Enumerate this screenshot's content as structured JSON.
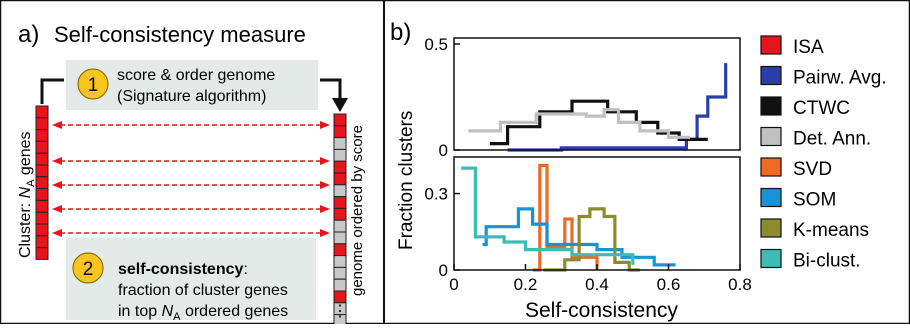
{
  "panel_a": {
    "label": "a)",
    "title": "Self-consistency measure",
    "cluster_axis_label": "Cluster: N_A genes",
    "genome_axis_label": "genome ordered by score",
    "ellipsis": "⋮",
    "step1": {
      "number": "1",
      "line1": "score & order genome",
      "line2": "(Signature algorithm)"
    },
    "step2": {
      "number": "2",
      "bold": "self-consistency",
      "rest": ":",
      "line2": "fraction of cluster genes",
      "line3_prefix": "in top ",
      "line3_sub_var": "N",
      "line3_sub": "A",
      "line3_suffix": " ordered genes"
    },
    "cluster_cells": 13,
    "genome_cells": [
      "red",
      "red",
      "gray",
      "gray",
      "red",
      "red",
      "gray",
      "red",
      "red",
      "gray",
      "gray",
      "red",
      "gray",
      "gray",
      "gray",
      "red",
      "gray",
      "gray",
      "red"
    ],
    "colors": {
      "red": "#e8141c",
      "gray": "#c8c8c8",
      "step_bg": "#e3eae8",
      "badge": "#f7c51b",
      "arrow": "#e8141c"
    }
  },
  "chart_data": [
    {
      "type": "line",
      "panel_label": "b)",
      "ylabel": "Fraction clusters",
      "yticks": [
        "0",
        "0.5"
      ],
      "ylim": [
        0,
        0.5
      ],
      "xlim": [
        0,
        0.8
      ],
      "series": [
        {
          "name": "Pairw. Avg.",
          "color": "#2b3ea8",
          "points": [
            [
              0.15,
              0.0
            ],
            [
              0.3,
              0.0
            ],
            [
              0.3,
              0.01
            ],
            [
              0.65,
              0.01
            ],
            [
              0.65,
              0.05
            ],
            [
              0.68,
              0.05
            ],
            [
              0.68,
              0.16
            ],
            [
              0.71,
              0.16
            ],
            [
              0.71,
              0.25
            ],
            [
              0.76,
              0.25
            ],
            [
              0.76,
              0.41
            ]
          ]
        },
        {
          "name": "CTWC",
          "color": "#111111",
          "points": [
            [
              0.1,
              0.03
            ],
            [
              0.15,
              0.03
            ],
            [
              0.15,
              0.11
            ],
            [
              0.24,
              0.11
            ],
            [
              0.24,
              0.18
            ],
            [
              0.33,
              0.18
            ],
            [
              0.33,
              0.23
            ],
            [
              0.43,
              0.23
            ],
            [
              0.43,
              0.18
            ],
            [
              0.51,
              0.18
            ],
            [
              0.51,
              0.13
            ],
            [
              0.57,
              0.13
            ],
            [
              0.57,
              0.08
            ],
            [
              0.63,
              0.08
            ],
            [
              0.63,
              0.05
            ],
            [
              0.71,
              0.05
            ]
          ]
        },
        {
          "name": "Det. Ann.",
          "color": "#c0c0c0",
          "points": [
            [
              0.04,
              0.09
            ],
            [
              0.13,
              0.09
            ],
            [
              0.13,
              0.13
            ],
            [
              0.23,
              0.13
            ],
            [
              0.23,
              0.17
            ],
            [
              0.37,
              0.17
            ],
            [
              0.37,
              0.16
            ],
            [
              0.42,
              0.16
            ],
            [
              0.42,
              0.19
            ],
            [
              0.46,
              0.19
            ],
            [
              0.46,
              0.13
            ],
            [
              0.52,
              0.13
            ],
            [
              0.52,
              0.09
            ],
            [
              0.6,
              0.09
            ],
            [
              0.6,
              0.06
            ],
            [
              0.66,
              0.06
            ]
          ]
        }
      ]
    },
    {
      "type": "line",
      "ylabel": "Fraction clusters",
      "xlabel": "Self-consistency",
      "yticks": [
        "0",
        "0.3"
      ],
      "xticks": [
        "0",
        "0.2",
        "0.4",
        "0.6",
        "0.8"
      ],
      "ylim": [
        0,
        0.42
      ],
      "xlim": [
        0,
        0.8
      ],
      "series": [
        {
          "name": "SVD",
          "color": "#ef6b24",
          "points": [
            [
              0.22,
              0.0
            ],
            [
              0.24,
              0.0
            ],
            [
              0.24,
              0.41
            ],
            [
              0.26,
              0.41
            ],
            [
              0.26,
              0.09
            ],
            [
              0.31,
              0.09
            ],
            [
              0.31,
              0.2
            ],
            [
              0.33,
              0.2
            ],
            [
              0.33,
              0.05
            ],
            [
              0.4,
              0.05
            ],
            [
              0.4,
              0.0
            ]
          ]
        },
        {
          "name": "SOM",
          "color": "#1a93d6",
          "points": [
            [
              0.08,
              0.1
            ],
            [
              0.09,
              0.1
            ],
            [
              0.09,
              0.17
            ],
            [
              0.18,
              0.17
            ],
            [
              0.18,
              0.24
            ],
            [
              0.22,
              0.24
            ],
            [
              0.22,
              0.18
            ],
            [
              0.26,
              0.18
            ],
            [
              0.26,
              0.1
            ],
            [
              0.4,
              0.1
            ],
            [
              0.4,
              0.08
            ],
            [
              0.47,
              0.08
            ],
            [
              0.47,
              0.05
            ],
            [
              0.56,
              0.05
            ],
            [
              0.56,
              0.02
            ],
            [
              0.62,
              0.02
            ]
          ]
        },
        {
          "name": "K-means",
          "color": "#8c8c2e",
          "points": [
            [
              0.25,
              0.0
            ],
            [
              0.31,
              0.0
            ],
            [
              0.31,
              0.04
            ],
            [
              0.35,
              0.04
            ],
            [
              0.35,
              0.21
            ],
            [
              0.38,
              0.21
            ],
            [
              0.38,
              0.24
            ],
            [
              0.42,
              0.24
            ],
            [
              0.42,
              0.21
            ],
            [
              0.45,
              0.21
            ],
            [
              0.45,
              0.03
            ],
            [
              0.49,
              0.03
            ],
            [
              0.49,
              0.0
            ],
            [
              0.52,
              0.0
            ]
          ]
        },
        {
          "name": "Bi-clust.",
          "color": "#3bbdb5",
          "points": [
            [
              0.02,
              0.4
            ],
            [
              0.06,
              0.4
            ],
            [
              0.06,
              0.13
            ],
            [
              0.14,
              0.13
            ],
            [
              0.14,
              0.11
            ],
            [
              0.2,
              0.11
            ],
            [
              0.2,
              0.08
            ],
            [
              0.33,
              0.08
            ],
            [
              0.33,
              0.06
            ],
            [
              0.5,
              0.06
            ],
            [
              0.5,
              0.02
            ]
          ]
        }
      ]
    }
  ],
  "legend": {
    "items": [
      {
        "label": "ISA",
        "color": "#e8141c"
      },
      {
        "label": "Pairw. Avg.",
        "color": "#2b3ea8"
      },
      {
        "label": "CTWC",
        "color": "#111111"
      },
      {
        "label": "Det. Ann.",
        "color": "#c0c0c0"
      },
      {
        "label": "SVD",
        "color": "#ef6b24"
      },
      {
        "label": "SOM",
        "color": "#1a93d6"
      },
      {
        "label": "K-means",
        "color": "#8c8c2e"
      },
      {
        "label": "Bi-clust.",
        "color": "#3bbdb5"
      }
    ]
  }
}
